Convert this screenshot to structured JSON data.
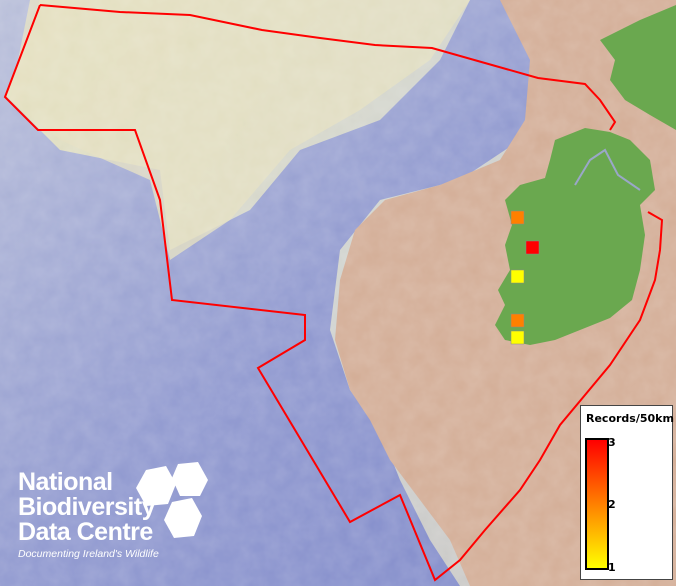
{
  "map": {
    "boundary_color": "#ff0000",
    "records": [
      {
        "value": 2,
        "color": "#ff8000"
      },
      {
        "value": 3,
        "color": "#ff0000"
      },
      {
        "value": 1,
        "color": "#ffff00"
      },
      {
        "value": 2,
        "color": "#ff8000"
      },
      {
        "value": 1,
        "color": "#ffff00"
      }
    ]
  },
  "legend": {
    "title": "Records/50km",
    "max_label": "3",
    "mid_label": "2",
    "min_label": "1",
    "colors": [
      "#ff0000",
      "#ff8000",
      "#ffff00"
    ]
  },
  "logo": {
    "line1": "National",
    "line2": "Biodiversity",
    "line3": "Data Centre",
    "tagline": "Documenting Ireland's Wildlife"
  }
}
